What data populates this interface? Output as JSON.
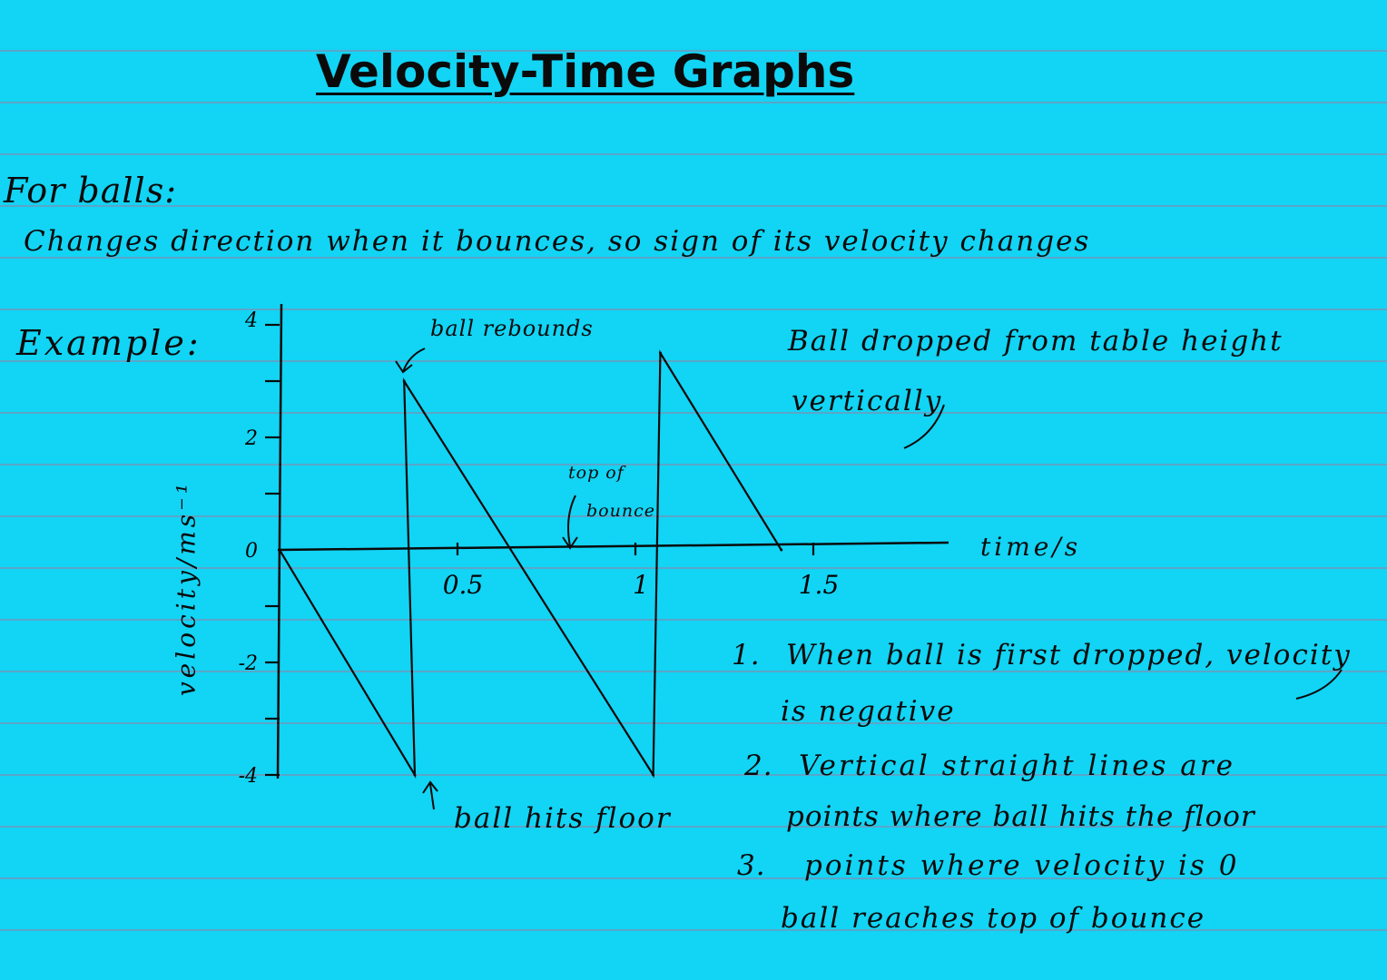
{
  "page": {
    "title": "Velocity-Time Graphs",
    "heading": "For balls:",
    "intro": "Changes direction when it bounces, so sign of its velocity changes",
    "example_label": "Example:",
    "description_line1": "Ball dropped from table height",
    "description_line2": "vertically"
  },
  "annotations": {
    "rebounds": "ball rebounds",
    "top_line1": "top of",
    "top_line2": "bounce",
    "floor": "ball hits floor"
  },
  "notes": [
    {
      "num": "1.",
      "line1": "When ball is first dropped, velocity",
      "line2": "is negative"
    },
    {
      "num": "2.",
      "line1": "Vertical straight lines are",
      "line2": "points where ball hits the floor"
    },
    {
      "num": "3.",
      "line1": "points where velocity is 0",
      "line2": "ball reaches top of bounce"
    }
  ],
  "chart_data": {
    "type": "line",
    "xlabel": "time/s",
    "ylabel": "velocity/ms⁻¹",
    "xlim": [
      0,
      1.75
    ],
    "ylim": [
      -4,
      4
    ],
    "x_ticks": [
      0.5,
      1,
      1.5
    ],
    "x_tick_labels": [
      "0.5",
      "1",
      "1.5"
    ],
    "y_ticks": [
      4,
      3,
      2,
      1,
      0,
      -1,
      -2,
      -3,
      -4
    ],
    "y_tick_labels": [
      "4",
      "",
      "2",
      "",
      "0",
      "",
      "-2",
      "",
      "-4"
    ],
    "series": [
      {
        "x": [
          0,
          0.38,
          0.35,
          1.05,
          1.07,
          1.41
        ],
        "y": [
          0,
          -4,
          3,
          -4,
          3.5,
          0
        ]
      }
    ]
  }
}
